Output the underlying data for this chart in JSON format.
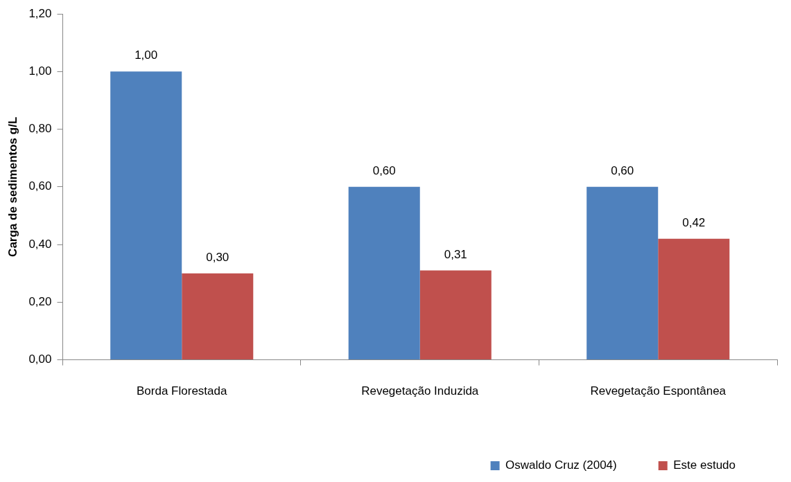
{
  "chart_data": {
    "type": "bar",
    "ylabel": "Carga de sedimentos g/L",
    "categories": [
      "Borda Florestada",
      "Revegetação Induzida",
      "Revegetação Espontânea"
    ],
    "series": [
      {
        "name": "Oswaldo Cruz (2004)",
        "color": "#4f81bd",
        "values": [
          1.0,
          0.6,
          0.6
        ],
        "value_labels": [
          "1,00",
          "0,60",
          "0,60"
        ]
      },
      {
        "name": "Este estudo",
        "color": "#c0504d",
        "values": [
          0.3,
          0.31,
          0.42
        ],
        "value_labels": [
          "0,30",
          "0,31",
          "0,42"
        ]
      }
    ],
    "ylim": [
      0,
      1.2
    ],
    "yticks": [
      {
        "value": 0,
        "label": "0,00"
      },
      {
        "value": 0.2,
        "label": "0,20"
      },
      {
        "value": 0.4,
        "label": "0,40"
      },
      {
        "value": 0.6,
        "label": "0,60"
      },
      {
        "value": 0.8,
        "label": "0,80"
      },
      {
        "value": 1,
        "label": "1,00"
      },
      {
        "value": 1.2,
        "label": "1,20"
      }
    ],
    "grid": false,
    "legend": "bottom right"
  }
}
